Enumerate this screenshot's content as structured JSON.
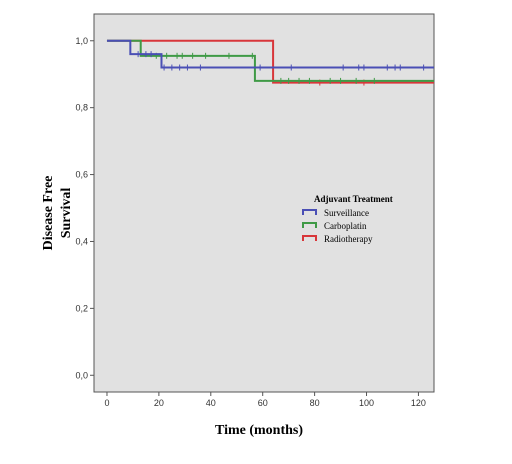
{
  "chart_data": {
    "type": "line",
    "title": "",
    "xlabel": "Time (months)",
    "ylabel": "Disease Free Survival",
    "xlim": [
      -5,
      126
    ],
    "ylim": [
      -0.05,
      1.08
    ],
    "x_ticks": [
      0,
      20,
      40,
      60,
      80,
      100,
      120
    ],
    "x_tick_labels": [
      "0",
      "20",
      "40",
      "60",
      "80",
      "100",
      "120"
    ],
    "y_ticks": [
      0.0,
      0.2,
      0.4,
      0.6,
      0.8,
      1.0
    ],
    "y_tick_labels": [
      "0,0",
      "0,2",
      "0,4",
      "0,6",
      "0,8",
      "1,0"
    ],
    "grid": false,
    "legend": {
      "title": "Adjuvant Treatment",
      "position": "right-middle"
    },
    "series": [
      {
        "name": "Surveillance",
        "color": "#4a4fb5",
        "steps": [
          [
            0,
            1.0
          ],
          [
            9,
            0.96
          ],
          [
            21,
            0.92
          ],
          [
            126,
            0.92
          ]
        ],
        "censored": [
          12,
          15,
          17,
          22,
          25,
          28,
          31,
          36,
          59,
          71,
          91,
          97,
          99,
          108,
          111,
          113,
          122
        ]
      },
      {
        "name": "Carboplatin",
        "color": "#3f9a46",
        "steps": [
          [
            0,
            1.0
          ],
          [
            13,
            0.955
          ],
          [
            57,
            0.88
          ],
          [
            126,
            0.88
          ]
        ],
        "censored": [
          19,
          23,
          27,
          29,
          33,
          38,
          47,
          56,
          67,
          70,
          74,
          78,
          86,
          90,
          96,
          103
        ]
      },
      {
        "name": "Radiotherapy",
        "color": "#d8363a",
        "steps": [
          [
            0,
            1.0
          ],
          [
            64,
            0.875
          ],
          [
            126,
            0.875
          ]
        ],
        "censored": [
          82,
          99
        ]
      }
    ]
  }
}
